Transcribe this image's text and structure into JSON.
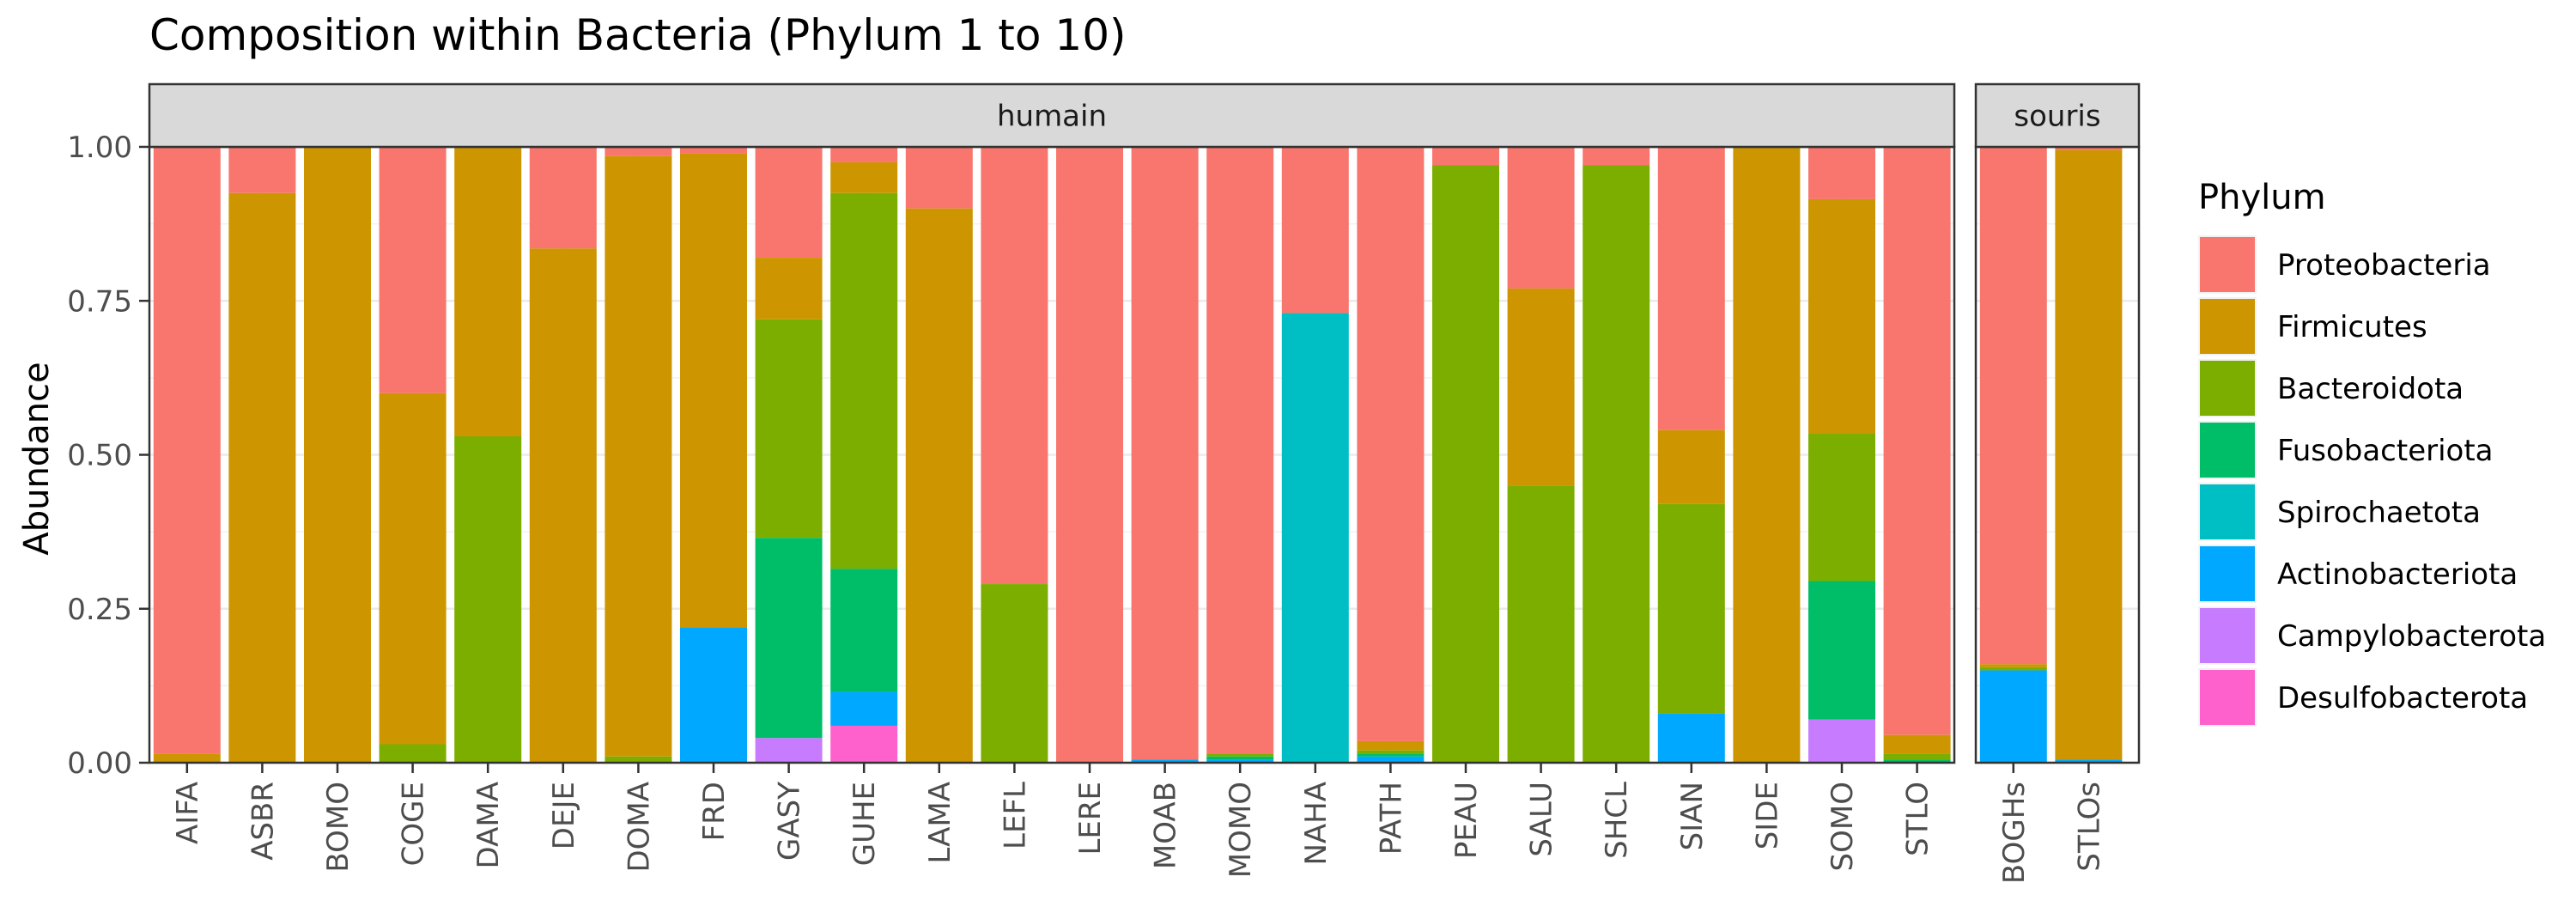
{
  "chart_data": {
    "type": "bar",
    "stacked": true,
    "title": "Composition within Bacteria (Phylum 1 to 10)",
    "ylabel": "Abundance",
    "xlabel": "",
    "ylim": [
      0,
      1
    ],
    "yticks": [
      "0.00",
      "0.25",
      "0.50",
      "0.75",
      "1.00"
    ],
    "grid": true,
    "legend_title": "Phylum",
    "legend_position": "right",
    "series": [
      {
        "name": "Proteobacteria",
        "color": "#F8766D"
      },
      {
        "name": "Firmicutes",
        "color": "#CD9600"
      },
      {
        "name": "Bacteroidota",
        "color": "#7CAE00"
      },
      {
        "name": "Fusobacteriota",
        "color": "#00BE67"
      },
      {
        "name": "Spirochaetota",
        "color": "#00BFC4"
      },
      {
        "name": "Actinobacteriota",
        "color": "#00A9FF"
      },
      {
        "name": "Campylobacterota",
        "color": "#C77CFF"
      },
      {
        "name": "Desulfobacterota",
        "color": "#FF61CC"
      }
    ],
    "panels": [
      {
        "label": "humain",
        "categories": [
          "AIFA",
          "ASBR",
          "BOMO",
          "COGE",
          "DAMA",
          "DEJE",
          "DOMA",
          "FRD",
          "GASY",
          "GUHE",
          "LAMA",
          "LEFL",
          "LERE",
          "MOAB",
          "MOMO",
          "NAHA",
          "PATH",
          "PEAU",
          "SALU",
          "SHCL",
          "SIAN",
          "SIDE",
          "SOMO",
          "STLO"
        ],
        "values": [
          [
            0.985,
            0.015,
            0,
            0,
            0,
            0,
            0,
            0
          ],
          [
            0.075,
            0.925,
            0,
            0,
            0,
            0,
            0,
            0
          ],
          [
            0,
            1.0,
            0,
            0,
            0,
            0,
            0,
            0
          ],
          [
            0.4,
            0.57,
            0.03,
            0,
            0,
            0,
            0,
            0
          ],
          [
            0,
            0.47,
            0.53,
            0,
            0,
            0,
            0,
            0
          ],
          [
            0.165,
            0.835,
            0,
            0,
            0,
            0,
            0,
            0
          ],
          [
            0.015,
            0.975,
            0.01,
            0,
            0,
            0,
            0,
            0
          ],
          [
            0.01,
            0.77,
            0,
            0,
            0,
            0.22,
            0,
            0
          ],
          [
            0.18,
            0.1,
            0.355,
            0.325,
            0,
            0,
            0.04,
            0
          ],
          [
            0.03,
            0.05,
            0.61,
            0.2,
            0,
            0.055,
            0,
            0.06
          ],
          [
            0.1,
            0.9,
            0,
            0,
            0,
            0,
            0,
            0
          ],
          [
            0.71,
            0,
            0.29,
            0,
            0,
            0,
            0,
            0
          ],
          [
            1.0,
            0,
            0,
            0,
            0,
            0,
            0,
            0
          ],
          [
            0.995,
            0,
            0,
            0,
            0,
            0.005,
            0,
            0
          ],
          [
            0.985,
            0,
            0.005,
            0.005,
            0,
            0.005,
            0,
            0
          ],
          [
            0.27,
            0,
            0,
            0,
            0.73,
            0,
            0,
            0
          ],
          [
            0.965,
            0.015,
            0.005,
            0.005,
            0,
            0.01,
            0,
            0
          ],
          [
            0.03,
            0,
            0.97,
            0,
            0,
            0,
            0,
            0
          ],
          [
            0.23,
            0.32,
            0.45,
            0,
            0,
            0,
            0,
            0
          ],
          [
            0.03,
            0,
            0.97,
            0,
            0,
            0,
            0,
            0
          ],
          [
            0.46,
            0.12,
            0.34,
            0,
            0,
            0.08,
            0,
            0
          ],
          [
            0,
            1.0,
            0,
            0,
            0,
            0,
            0,
            0
          ],
          [
            0.085,
            0.38,
            0.24,
            0.225,
            0,
            0,
            0.07,
            0
          ],
          [
            0.955,
            0.03,
            0.01,
            0.005,
            0,
            0,
            0,
            0
          ]
        ]
      },
      {
        "label": "souris",
        "categories": [
          "BOGHs",
          "STLOs"
        ],
        "values": [
          [
            0.84,
            0.005,
            0.005,
            0,
            0,
            0.15,
            0,
            0
          ],
          [
            0.005,
            0.99,
            0,
            0,
            0,
            0.005,
            0,
            0
          ]
        ]
      }
    ]
  }
}
